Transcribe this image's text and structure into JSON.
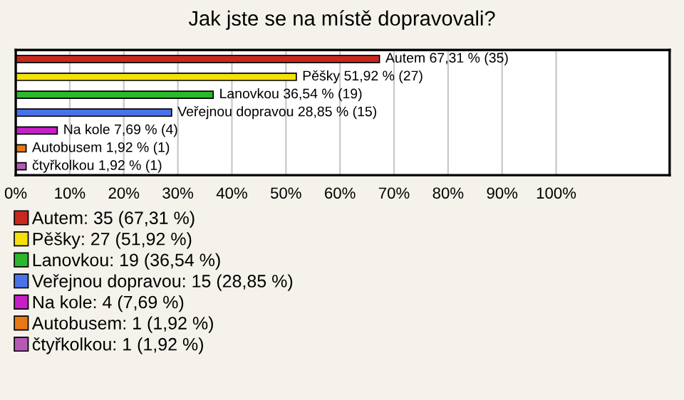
{
  "chart_data": {
    "type": "bar",
    "orientation": "horizontal",
    "title": "Jak jste se na místě dopravovali?",
    "categories": [
      null,
      null,
      null,
      null,
      null,
      null,
      null
    ],
    "series": [
      {
        "name": "Autem: 35 (67,31 %)",
        "color": "#c8281e",
        "values": [
          67.31,
          null,
          null,
          null,
          null,
          null,
          null
        ],
        "value_labels": [
          "Autem 67,31 % (35)",
          null,
          null,
          null,
          null,
          null,
          null
        ]
      },
      {
        "name": "Pěšky: 27 (51,92 %)",
        "color": "#f5e10a",
        "values": [
          null,
          51.92,
          null,
          null,
          null,
          null,
          null
        ],
        "value_labels": [
          null,
          "Pěšky 51,92 % (27)",
          null,
          null,
          null,
          null,
          null
        ]
      },
      {
        "name": "Lanovkou: 19 (36,54 %)",
        "color": "#2cb82c",
        "values": [
          null,
          null,
          36.54,
          null,
          null,
          null,
          null
        ],
        "value_labels": [
          null,
          null,
          "Lanovkou 36,54 % (19)",
          null,
          null,
          null,
          null
        ]
      },
      {
        "name": "Veřejnou dopravou: 15 (28,85 %)",
        "color": "#4a72e8",
        "values": [
          null,
          null,
          null,
          28.85,
          null,
          null,
          null
        ],
        "value_labels": [
          null,
          null,
          null,
          "Veřejnou dopravou 28,85 % (15)",
          null,
          null,
          null
        ]
      },
      {
        "name": "Na kole: 4 (7,69 %)",
        "color": "#c81ec8",
        "values": [
          null,
          null,
          null,
          null,
          7.69,
          null,
          null
        ],
        "value_labels": [
          null,
          null,
          null,
          null,
          "Na kole 7,69 % (4)",
          null,
          null
        ]
      },
      {
        "name": "Autobusem: 1 (1,92 %)",
        "color": "#e87814",
        "values": [
          null,
          null,
          null,
          null,
          null,
          1.92,
          null
        ],
        "value_labels": [
          null,
          null,
          null,
          null,
          null,
          "Autobusem 1,92 % (1)",
          null
        ]
      },
      {
        "name": "čtyřkolkou: 1 (1,92 %)",
        "color": "#b45ab4",
        "values": [
          null,
          null,
          null,
          null,
          null,
          null,
          1.92
        ],
        "value_labels": [
          null,
          null,
          null,
          null,
          null,
          null,
          "čtyřkolkou 1,92 % (1)"
        ]
      }
    ],
    "xlim": [
      0,
      121
    ],
    "xticks": [
      {
        "value": 0,
        "label": "0%"
      },
      {
        "value": 10,
        "label": "10%"
      },
      {
        "value": 20,
        "label": "20%"
      },
      {
        "value": 30,
        "label": "30%"
      },
      {
        "value": 40,
        "label": "40%"
      },
      {
        "value": 50,
        "label": "50%"
      },
      {
        "value": 60,
        "label": "60%"
      },
      {
        "value": 70,
        "label": "70%"
      },
      {
        "value": 80,
        "label": "80%"
      },
      {
        "value": 90,
        "label": "90%"
      },
      {
        "value": 100,
        "label": "100%"
      }
    ],
    "grid": "x",
    "legend": "bottom"
  }
}
